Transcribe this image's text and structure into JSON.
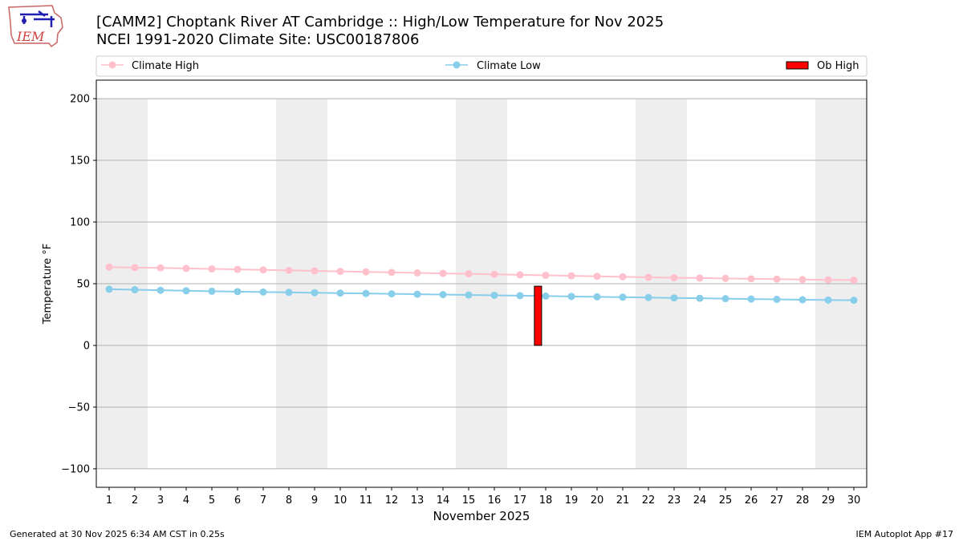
{
  "logo": {
    "text": "IEM"
  },
  "header": {
    "title_line1": "[CAMM2] Choptank River  AT Cambridge :: High/Low Temperature for Nov 2025",
    "title_line2": "NCEI 1991-2020 Climate Site: USC00187806"
  },
  "footer": {
    "left": "Generated at 30 Nov 2025 6:34 AM CST in 0.25s",
    "right": "IEM Autoplot App #17"
  },
  "colors": {
    "climate_high": "#ffc0cb",
    "climate_low": "#87ceeb",
    "ob_high": "#ff0000",
    "weekend_shade": "#eeeeee",
    "grid": "#b0b0b0"
  },
  "chart_data": {
    "type": "line",
    "title": "[CAMM2] Choptank River  AT Cambridge :: High/Low Temperature for Nov 2025",
    "xlabel": "November 2025",
    "ylabel": "Temperature °F",
    "xlim": [
      0.5,
      30.5
    ],
    "ylim": [
      -115,
      215
    ],
    "yticks": [
      -100,
      -50,
      0,
      50,
      100,
      150,
      200
    ],
    "ytick_labels": [
      "−100",
      "−50",
      "0",
      "50",
      "100",
      "150",
      "200"
    ],
    "x": [
      1,
      2,
      3,
      4,
      5,
      6,
      7,
      8,
      9,
      10,
      11,
      12,
      13,
      14,
      15,
      16,
      17,
      18,
      19,
      20,
      21,
      22,
      23,
      24,
      25,
      26,
      27,
      28,
      29,
      30
    ],
    "xtick_labels": [
      "1",
      "2",
      "3",
      "4",
      "5",
      "6",
      "7",
      "8",
      "9",
      "10",
      "11",
      "12",
      "13",
      "14",
      "15",
      "16",
      "17",
      "18",
      "19",
      "20",
      "21",
      "22",
      "23",
      "24",
      "25",
      "26",
      "27",
      "28",
      "29",
      "30"
    ],
    "grid": true,
    "legend_placement": "top",
    "shaded_weekends": [
      [
        0.5,
        2.5
      ],
      [
        7.5,
        9.5
      ],
      [
        14.5,
        16.5
      ],
      [
        21.5,
        23.5
      ],
      [
        28.5,
        30.5
      ]
    ],
    "series": [
      {
        "name": "Climate High",
        "type": "line",
        "values": [
          63.5,
          63.1,
          62.8,
          62.4,
          62.0,
          61.6,
          61.2,
          60.8,
          60.4,
          60.0,
          59.6,
          59.2,
          58.8,
          58.4,
          58.0,
          57.6,
          57.2,
          56.8,
          56.4,
          56.0,
          55.6,
          55.2,
          54.9,
          54.6,
          54.3,
          54.0,
          53.7,
          53.4,
          53.1,
          52.9
        ]
      },
      {
        "name": "Climate Low",
        "type": "line",
        "values": [
          45.5,
          45.1,
          44.7,
          44.3,
          43.9,
          43.6,
          43.3,
          43.0,
          42.7,
          42.4,
          42.1,
          41.8,
          41.5,
          41.2,
          40.9,
          40.6,
          40.3,
          40.0,
          39.7,
          39.4,
          39.1,
          38.8,
          38.5,
          38.2,
          37.9,
          37.6,
          37.3,
          37.0,
          36.8,
          36.6
        ]
      },
      {
        "name": "Ob High",
        "type": "bar",
        "x": [
          17.7
        ],
        "values": [
          48
        ]
      }
    ]
  }
}
